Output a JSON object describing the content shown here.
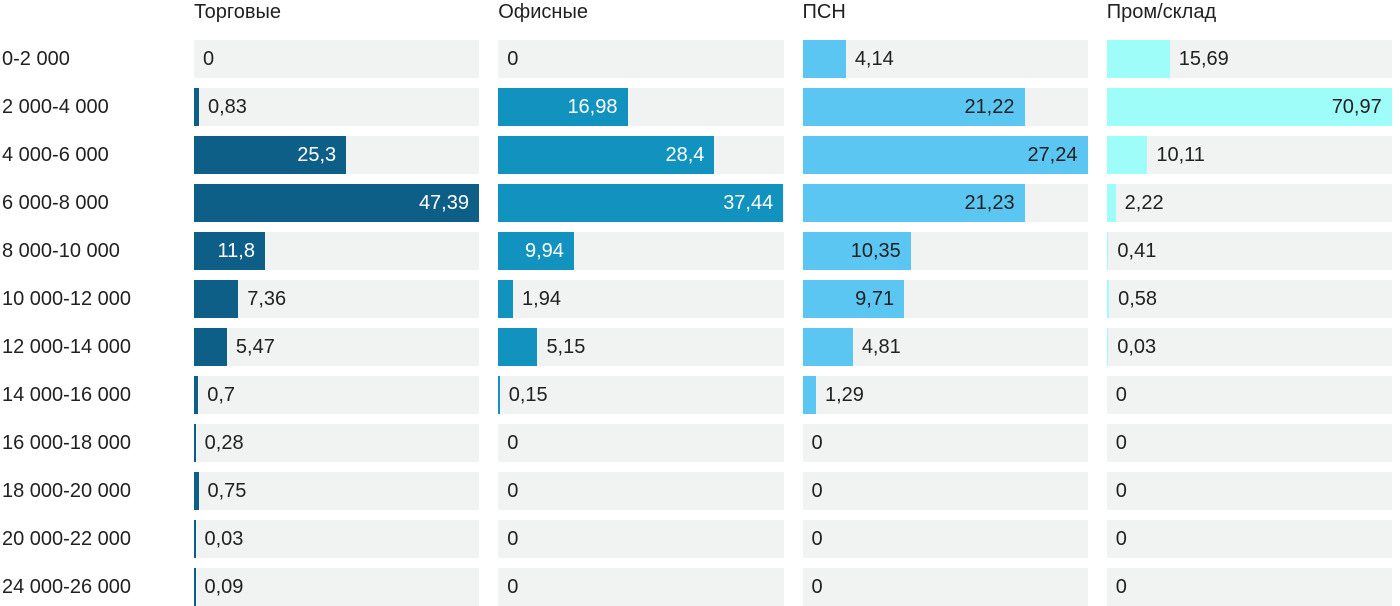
{
  "colors": {
    "background": "#FFFFFF",
    "text": "#212121",
    "bar_track": "#F1F2F2",
    "series_torgovye": "#0E5F87",
    "series_ofisnye": "#1192BF",
    "series_psn": "#5BC6F2",
    "series_promsklad": "#9EFCF9"
  },
  "chart_data": {
    "type": "bar",
    "orientation": "horizontal",
    "value_format": "comma-decimal",
    "categories": [
      "0-2 000",
      "2 000-4 000",
      "4 000-6 000",
      "6 000-8 000",
      "8 000-10 000",
      "10 000-12 000",
      "12 000-14 000",
      "14 000-16 000",
      "16 000-18 000",
      "18 000-20 000",
      "20 000-22 000",
      "24 000-26 000"
    ],
    "series": [
      {
        "name": "Торговые",
        "color": "#0E5F87",
        "inside_text_color": "#FFFFFF",
        "scale_max": 47.39,
        "values": [
          0,
          0.83,
          25.3,
          47.39,
          11.8,
          7.36,
          5.47,
          0.7,
          0.28,
          0.75,
          0.03,
          0.09
        ],
        "labels": [
          "0",
          "0,83",
          "25,3",
          "47,39",
          "11,8",
          "7,36",
          "5,47",
          "0,7",
          "0,28",
          "0,75",
          "0,03",
          "0,09"
        ]
      },
      {
        "name": "Офисные",
        "color": "#1192BF",
        "inside_text_color": "#FFFFFF",
        "scale_max": 37.44,
        "values": [
          0,
          16.98,
          28.4,
          37.44,
          9.94,
          1.94,
          5.15,
          0.15,
          0,
          0,
          0,
          0
        ],
        "labels": [
          "0",
          "16,98",
          "28,4",
          "37,44",
          "9,94",
          "1,94",
          "5,15",
          "0,15",
          "0",
          "0",
          "0",
          "0"
        ]
      },
      {
        "name": "ПСН",
        "color": "#5BC6F2",
        "inside_text_color": "#212121",
        "scale_max": 27.24,
        "values": [
          4.14,
          21.22,
          27.24,
          21.23,
          10.35,
          9.71,
          4.81,
          1.29,
          0,
          0,
          0,
          0
        ],
        "labels": [
          "4,14",
          "21,22",
          "27,24",
          "21,23",
          "10,35",
          "9,71",
          "4,81",
          "1,29",
          "0",
          "0",
          "0",
          "0"
        ]
      },
      {
        "name": "Пром/склад",
        "color": "#9EFCF9",
        "inside_text_color": "#212121",
        "scale_max": 70.97,
        "values": [
          15.69,
          70.97,
          10.11,
          2.22,
          0.41,
          0.58,
          0.03,
          0,
          0,
          0,
          0,
          0
        ],
        "labels": [
          "15,69",
          "70,97",
          "10,11",
          "2,22",
          "0,41",
          "0,58",
          "0,03",
          "0",
          "0",
          "0",
          "0",
          "0"
        ]
      }
    ],
    "layout_hints": {
      "legend": "none",
      "grid": "off",
      "bar_scaling": "each column scaled independently so its max value fills the 290px track",
      "zero_values": "no bar drawn, label at track start",
      "label_placement": "inside bar right-aligned when it fits, otherwise outside after bar end"
    }
  }
}
